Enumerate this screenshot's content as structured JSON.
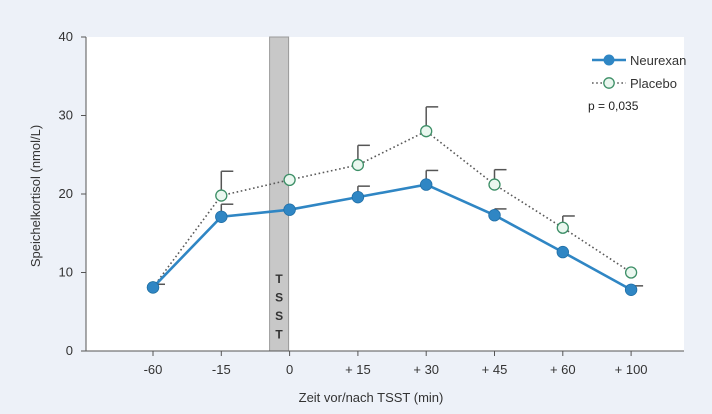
{
  "chart_data": {
    "type": "line",
    "xlabel": "Zeit vor/nach TSST (min)",
    "ylabel": "Speichelkortisol (nmol/L)",
    "categories": [
      "-60",
      "-15",
      "0",
      "+ 15",
      "+ 30",
      "+ 45",
      "+ 60",
      "+ 100"
    ],
    "ylim": [
      0,
      40
    ],
    "yticks": [
      0,
      10,
      20,
      30,
      40
    ],
    "grid": false,
    "legend_position": "top-right",
    "annotation": "p = 0,035",
    "shaded_band": {
      "category": "0",
      "label": [
        "T",
        "S",
        "S",
        "T"
      ],
      "color": "#c8c8c8"
    },
    "series": [
      {
        "name": "Neurexan",
        "color": "#2f86c4",
        "style": "solid",
        "marker": "filled-circle",
        "values": [
          8.1,
          17.1,
          18.0,
          19.6,
          21.2,
          17.3,
          12.6,
          7.8
        ],
        "error": [
          0.4,
          1.6,
          null,
          1.4,
          1.8,
          0.8,
          null,
          0.5
        ]
      },
      {
        "name": "Placebo",
        "color": "#5a5a5a",
        "marker_fill": "#eaf7ef",
        "marker_stroke": "#3d8f67",
        "style": "dotted",
        "marker": "open-circle",
        "values": [
          8.1,
          19.8,
          21.8,
          23.7,
          28.0,
          21.2,
          15.7,
          10.0
        ],
        "error": [
          null,
          3.1,
          null,
          2.5,
          3.1,
          1.9,
          1.5,
          null
        ]
      }
    ]
  }
}
